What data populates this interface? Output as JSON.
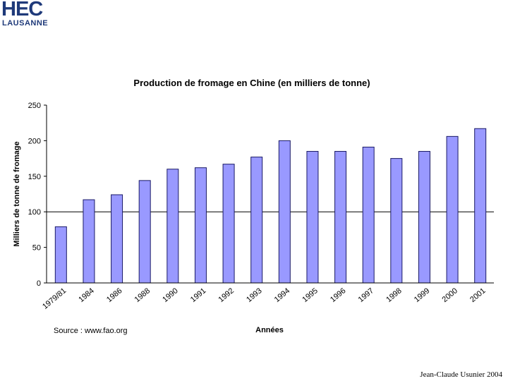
{
  "logo": {
    "main": "HEC",
    "sub": "LAUSANNE"
  },
  "footer": {
    "credit": "Jean-Claude Usunier 2004"
  },
  "colors": {
    "bar_fill": "#9999ff",
    "bar_stroke": "#1a1a66",
    "logo": "#1f3a7a"
  },
  "chart_data": {
    "type": "bar",
    "title": "Production de fromage en Chine (en milliers de tonne)",
    "xlabel": "Années",
    "ylabel": "Milliers de tonne de fromage",
    "source": "Source : www.fao.org",
    "categories": [
      "1979/81",
      "1984",
      "1986",
      "1988",
      "1990",
      "1991",
      "1992",
      "1993",
      "1994",
      "1995",
      "1996",
      "1997",
      "1998",
      "1999",
      "2000",
      "2001"
    ],
    "values": [
      79,
      117,
      124,
      144,
      160,
      162,
      167,
      177,
      200,
      185,
      185,
      191,
      175,
      185,
      206,
      217
    ],
    "ylim": [
      0,
      250
    ],
    "yticks": [
      0,
      50,
      100,
      150,
      200,
      250
    ],
    "grid": "horizontal at 100",
    "legend": "none"
  }
}
